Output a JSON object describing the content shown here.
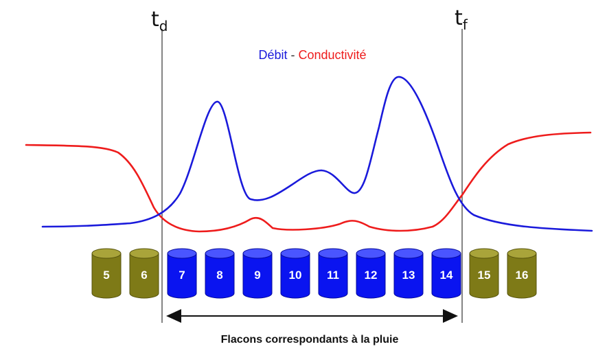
{
  "markers": {
    "start": {
      "letter": "t",
      "sub": "d"
    },
    "end": {
      "letter": "t",
      "sub": "f"
    }
  },
  "legend": {
    "flow_label": "Débit",
    "separator": " - ",
    "conductivity_label": "Conductivité"
  },
  "colors": {
    "flow": "#1a1adb",
    "conductivity": "#ee1c1c",
    "bottle_rain": "#0a14f0",
    "bottle_other": "#7e7a17",
    "marker_line": "#333333"
  },
  "bottles": [
    {
      "label": "5",
      "type": "other"
    },
    {
      "label": "6",
      "type": "other"
    },
    {
      "label": "7",
      "type": "rain"
    },
    {
      "label": "8",
      "type": "rain"
    },
    {
      "label": "9",
      "type": "rain"
    },
    {
      "label": "10",
      "type": "rain"
    },
    {
      "label": "11",
      "type": "rain"
    },
    {
      "label": "12",
      "type": "rain"
    },
    {
      "label": "13",
      "type": "rain"
    },
    {
      "label": "14",
      "type": "rain"
    },
    {
      "label": "15",
      "type": "other"
    },
    {
      "label": "16",
      "type": "other"
    }
  ],
  "caption": "Flacons correspondants à la pluie"
}
